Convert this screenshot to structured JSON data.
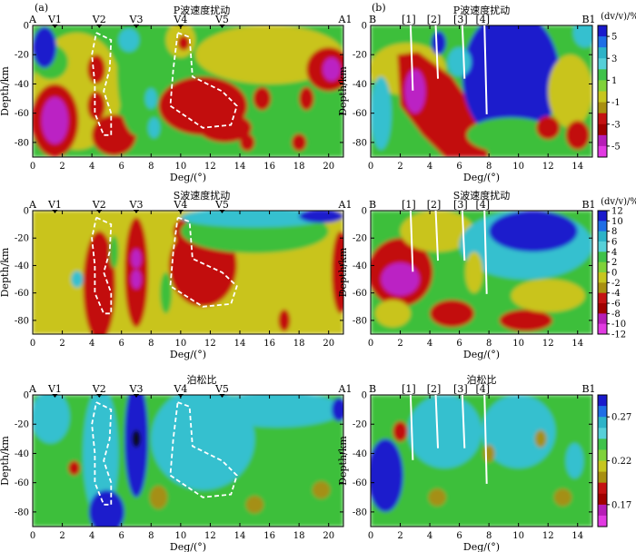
{
  "panel_labels": {
    "a": "(a)",
    "b": "(b)"
  },
  "rows": [
    {
      "key": "p",
      "title": "P波速度扰动"
    },
    {
      "key": "s",
      "title": "S波速度扰动"
    },
    {
      "key": "poisson",
      "title": "泊松比"
    }
  ],
  "axes": {
    "ylabel": "Depth/km",
    "xlabel": "Deg/(°)",
    "left": {
      "xticks": [
        0,
        2,
        4,
        6,
        8,
        10,
        12,
        14,
        16,
        18,
        20
      ],
      "xlim": [
        0,
        21
      ],
      "ylim": [
        -90,
        0
      ],
      "yticks": [
        0,
        -20,
        -40,
        -60,
        -80
      ]
    },
    "right": {
      "xticks": [
        0,
        2,
        4,
        6,
        8,
        10,
        12,
        14
      ],
      "xlim": [
        0,
        15
      ],
      "ylim": [
        -90,
        0
      ],
      "yticks": [
        0,
        -20,
        -40,
        -60,
        -80
      ]
    }
  },
  "profile_left": {
    "start": "A",
    "end": "A1",
    "markers": [
      {
        "label": "V1",
        "deg": 1.5
      },
      {
        "label": "V2",
        "deg": 4.5
      },
      {
        "label": "V3",
        "deg": 7.0
      },
      {
        "label": "V4",
        "deg": 10.0
      },
      {
        "label": "V5",
        "deg": 12.8
      }
    ]
  },
  "profile_right": {
    "start": "B",
    "end": "B1",
    "faults": [
      {
        "label": "[1]",
        "deg": 2.7
      },
      {
        "label": "[2]",
        "deg": 4.4
      },
      {
        "label": "[3]",
        "deg": 6.2
      },
      {
        "label": "[4]",
        "deg": 7.7
      }
    ]
  },
  "colorbars": [
    {
      "label": "(dv/v)/%",
      "ticks": [
        "5",
        "3",
        "1",
        "-1",
        "-3",
        "-5"
      ],
      "colors": [
        "#1a1acc",
        "#1f6ee6",
        "#2db3c8",
        "#56d0d8",
        "#3fc24a",
        "#7fd23a",
        "#c6c61f",
        "#a88f10",
        "#c41212",
        "#a00000",
        "#b61db6",
        "#e23ae2"
      ]
    },
    {
      "label": "(dv/v)/%",
      "ticks": [
        "12",
        "10",
        "8",
        "6",
        "4",
        "2",
        "0",
        "-2",
        "-4",
        "-6",
        "-8",
        "-10",
        "-12"
      ],
      "colors": [
        "#1a1acc",
        "#1f6ee6",
        "#2db3c8",
        "#56d0d8",
        "#3fc24a",
        "#7fd23a",
        "#c6c61f",
        "#a88f10",
        "#c41212",
        "#a00000",
        "#b61db6",
        "#e23ae2"
      ]
    },
    {
      "label": "",
      "ticks": [
        "0.27",
        "0.22",
        "0.17"
      ],
      "colors": [
        "#1a1acc",
        "#1f6ee6",
        "#2db3c8",
        "#56d0d8",
        "#3fc24a",
        "#7fd23a",
        "#c6c61f",
        "#a88f10",
        "#c41212",
        "#a00000",
        "#b61db6",
        "#e23ae2"
      ]
    }
  ],
  "palette": {
    "blue": "#1a1acc",
    "cyan": "#36c0cf",
    "green": "#3dbf3a",
    "yellow": "#c9c41c",
    "olive": "#a58f12",
    "red": "#c20e0e",
    "purple": "#bb22c4",
    "dash": "#ffffff",
    "fault": "#ffffff"
  }
}
